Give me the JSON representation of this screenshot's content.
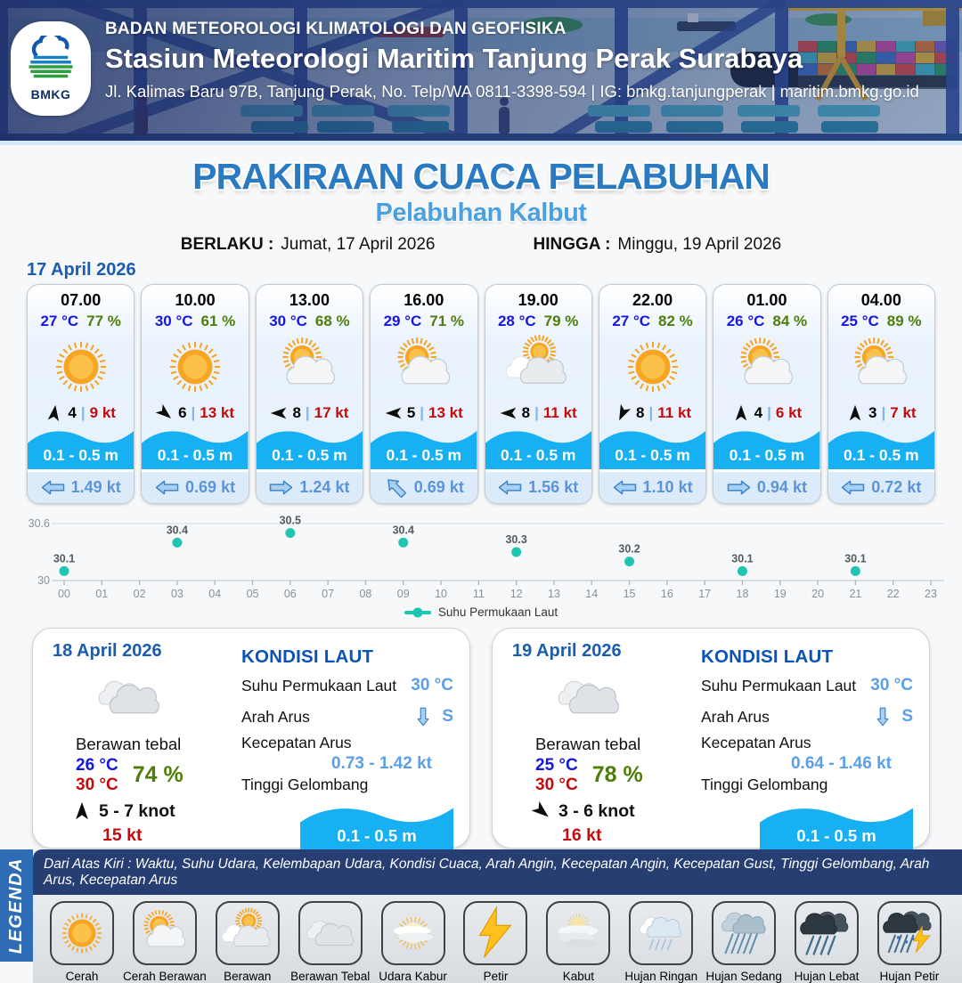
{
  "header": {
    "logo_text": "BMKG",
    "org": "BADAN METEOROLOGI KLIMATOLOGI DAN GEOFISIKA",
    "station": "Stasiun Meteorologi Maritim Tanjung Perak Surabaya",
    "address": "Jl. Kalimas Baru 97B, Tanjung Perak, No. Telp/WA 0811-3398-594 | IG: bmkg.tanjungperak | maritim.bmkg.go.id"
  },
  "title": {
    "main": "PRAKIRAAN CUACA PELABUHAN",
    "subtitle": "Pelabuhan Kalbut",
    "berlaku_label": "BERLAKU :",
    "berlaku_value": "Jumat, 17 April 2026",
    "hingga_label": "HINGGA :",
    "hingga_value": "Minggu, 19 April 2026"
  },
  "forecast": {
    "date": "17 April 2026",
    "separator": "|",
    "cards": [
      {
        "time": "07.00",
        "temp": "27 °C",
        "humidity": "77 %",
        "icon": "cerah",
        "wind_deg": 8,
        "wind_speed": "4",
        "gust": "9 kt",
        "wave": "0.1 - 0.5 m",
        "current_dir": "left",
        "current": "1.49 kt"
      },
      {
        "time": "10.00",
        "temp": "30 °C",
        "humidity": "61 %",
        "icon": "cerah",
        "wind_deg": 130,
        "wind_speed": "6",
        "gust": "13 kt",
        "wave": "0.1 - 0.5 m",
        "current_dir": "left",
        "current": "0.69 kt"
      },
      {
        "time": "13.00",
        "temp": "30 °C",
        "humidity": "68 %",
        "icon": "cerah-berawan",
        "wind_deg": 270,
        "wind_speed": "8",
        "gust": "17 kt",
        "wave": "0.1 - 0.5 m",
        "current_dir": "right",
        "current": "1.24 kt"
      },
      {
        "time": "16.00",
        "temp": "29 °C",
        "humidity": "71 %",
        "icon": "cerah-berawan",
        "wind_deg": 270,
        "wind_speed": "5",
        "gust": "13 kt",
        "wave": "0.1 - 0.5 m",
        "current_dir": "up-left",
        "current": "0.69 kt"
      },
      {
        "time": "19.00",
        "temp": "28 °C",
        "humidity": "79 %",
        "icon": "berawan",
        "wind_deg": 270,
        "wind_speed": "8",
        "gust": "11 kt",
        "wave": "0.1 - 0.5 m",
        "current_dir": "left",
        "current": "1.56 kt"
      },
      {
        "time": "22.00",
        "temp": "27 °C",
        "humidity": "82 %",
        "icon": "cerah",
        "wind_deg": 205,
        "wind_speed": "8",
        "gust": "11 kt",
        "wave": "0.1 - 0.5 m",
        "current_dir": "left",
        "current": "1.10 kt"
      },
      {
        "time": "01.00",
        "temp": "26 °C",
        "humidity": "84 %",
        "icon": "cerah-berawan",
        "wind_deg": 0,
        "wind_speed": "4",
        "gust": "6 kt",
        "wave": "0.1 - 0.5 m",
        "current_dir": "right",
        "current": "0.94 kt"
      },
      {
        "time": "04.00",
        "temp": "25 °C",
        "humidity": "89 %",
        "icon": "cerah-berawan",
        "wind_deg": 0,
        "wind_speed": "3",
        "gust": "7 kt",
        "wave": "0.1 - 0.5 m",
        "current_dir": "left",
        "current": "0.72 kt"
      }
    ]
  },
  "chart_data": {
    "type": "scatter",
    "title": "",
    "xlabel": "",
    "ylabel": "",
    "x_ticks": [
      "00",
      "01",
      "02",
      "03",
      "04",
      "05",
      "06",
      "07",
      "08",
      "09",
      "10",
      "11",
      "12",
      "13",
      "14",
      "15",
      "16",
      "17",
      "18",
      "19",
      "20",
      "21",
      "22",
      "23"
    ],
    "ylim": [
      30,
      30.6
    ],
    "y_ticks": [
      30,
      30.6
    ],
    "grid": true,
    "legend_position": "bottom",
    "series": [
      {
        "name": "Suhu Permukaan Laut",
        "color": "#20c5b2",
        "points": [
          {
            "x": 0,
            "y": 30.1
          },
          {
            "x": 3,
            "y": 30.4
          },
          {
            "x": 6,
            "y": 30.5
          },
          {
            "x": 9,
            "y": 30.4
          },
          {
            "x": 12,
            "y": 30.3
          },
          {
            "x": 15,
            "y": 30.2
          },
          {
            "x": 18,
            "y": 30.1
          },
          {
            "x": 21,
            "y": 30.1
          }
        ]
      }
    ]
  },
  "days": [
    {
      "date": "18 April 2026",
      "icon": "berawan-tebal",
      "condition": "Berawan tebal",
      "temp_min": "26 °C",
      "temp_max": "30 °C",
      "humidity": "74 %",
      "wind_deg": 0,
      "wind_range": "5  - 7 knot",
      "gust": "15 kt",
      "sea": {
        "heading": "KONDISI LAUT",
        "sst_label": "Suhu Permukaan Laut",
        "sst": "30 °C",
        "arah_label": "Arah Arus",
        "arah_dir": "down",
        "arah": "S",
        "kecepatan_label": "Kecepatan Arus",
        "kecepatan": "0.73  - 1.42 kt",
        "tinggi_label": "Tinggi Gelombang",
        "wave": "0.1 - 0.5 m"
      }
    },
    {
      "date": "19 April 2026",
      "icon": "berawan-tebal",
      "condition": "Berawan tebal",
      "temp_min": "25 °C",
      "temp_max": "30 °C",
      "humidity": "78 %",
      "wind_deg": 130,
      "wind_range": "3  - 6 knot",
      "gust": "16 kt",
      "sea": {
        "heading": "KONDISI LAUT",
        "sst_label": "Suhu Permukaan Laut",
        "sst": "30 °C",
        "arah_label": "Arah Arus",
        "arah_dir": "down",
        "arah": "S",
        "kecepatan_label": "Kecepatan Arus",
        "kecepatan": "0.64 - 1.46 kt",
        "tinggi_label": "Tinggi Gelombang",
        "wave": "0.1 - 0.5 m"
      }
    }
  ],
  "legend": {
    "title": "LEGENDA",
    "note": "Dari Atas Kiri : Waktu, Suhu Udara, Kelembapan Udara, Kondisi Cuaca, Arah Angin, Kecepatan Angin, Kecepatan Gust, Tinggi Gelombang, Arah Arus, Kecepatan Arus",
    "items": [
      {
        "label": "Cerah",
        "icon": "cerah"
      },
      {
        "label": "Cerah Berawan",
        "icon": "cerah-berawan"
      },
      {
        "label": "Berawan",
        "icon": "berawan"
      },
      {
        "label": "Berawan Tebal",
        "icon": "berawan-tebal"
      },
      {
        "label": "Udara Kabur",
        "icon": "udara-kabur"
      },
      {
        "label": "Petir",
        "icon": "petir"
      },
      {
        "label": "Kabut",
        "icon": "kabut"
      },
      {
        "label": "Hujan Ringan",
        "icon": "hujan-ringan"
      },
      {
        "label": "Hujan Sedang",
        "icon": "hujan-sedang"
      },
      {
        "label": "Hujan Lebat",
        "icon": "hujan-lebat"
      },
      {
        "label": "Hujan Petir",
        "icon": "hujan-petir"
      }
    ]
  }
}
